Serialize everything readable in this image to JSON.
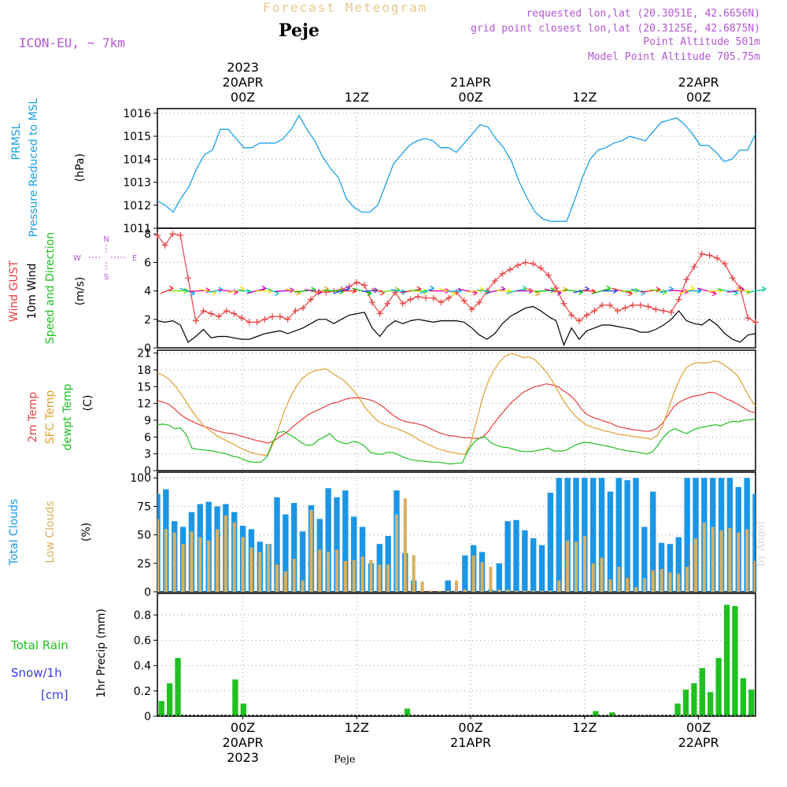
{
  "header": {
    "title": "Forecast Meteogram",
    "place": "Peje",
    "model": "ICON-EU, ~ 7km",
    "requested": "requested lon,lat (20.3051E, 42.6656N)",
    "grid_point": "grid point closest lon,lat (20.3125E, 42.6875N)",
    "point_altitude": "Point Altitude 501m",
    "model_altitude": "Model Point Altitude 705.75m",
    "credit": "by Angel"
  },
  "footer": {
    "place": "Peje"
  },
  "colors": {
    "pressure": "#1ca0e6",
    "gust": "#e84040",
    "wind": "#000000",
    "wind_dir": "#1fbf1f",
    "t2m": "#e84040",
    "tsfc": "#e0a030",
    "dewpt": "#20c020",
    "total_clouds": "#1a96e6",
    "low_clouds": "#d7b060",
    "rain": "#20c020",
    "snow": "#3a3ae0",
    "compass": "#b455d6",
    "grid": "#999999"
  },
  "chart_data": {
    "type": "meteogram",
    "time_axis": {
      "unit": "hours from 2023-04-19 15Z",
      "range": [
        0,
        63
      ],
      "major_ticks": [
        {
          "t": 9,
          "label": "00Z",
          "date": "20APR",
          "year": "2023"
        },
        {
          "t": 21,
          "label": "12Z",
          "date": "",
          "year": ""
        },
        {
          "t": 33,
          "label": "00Z",
          "date": "21APR",
          "year": ""
        },
        {
          "t": 45,
          "label": "12Z",
          "date": "",
          "year": ""
        },
        {
          "t": 57,
          "label": "00Z",
          "date": "22APR",
          "year": ""
        },
        {
          "t": 69,
          "label": "12Z",
          "date": "",
          "year": ""
        }
      ]
    },
    "panels": [
      {
        "id": "pressure",
        "labels": [
          "PRMSL",
          "Pressure Reduced to MSL"
        ],
        "unit": "(hPa)",
        "ylim": [
          1011,
          1016.2
        ],
        "yticks": [
          1011,
          1012,
          1013,
          1014,
          1015,
          1016
        ],
        "series": [
          {
            "key": "prmsl",
            "values": [
              1012.2,
              1012.0,
              1011.7,
              1012.3,
              1012.8,
              1013.6,
              1014.2,
              1014.4,
              1015.3,
              1015.3,
              1014.9,
              1014.5,
              1014.5,
              1014.7,
              1014.7,
              1014.7,
              1014.9,
              1015.3,
              1015.9,
              1015.3,
              1014.8,
              1014.1,
              1013.6,
              1013.2,
              1012.3,
              1011.9,
              1011.7,
              1011.7,
              1012.0,
              1012.9,
              1013.8,
              1014.2,
              1014.6,
              1014.8,
              1014.9,
              1014.8,
              1014.5,
              1014.5,
              1014.3,
              1014.7,
              1015.1,
              1015.5,
              1015.4,
              1014.9,
              1014.5,
              1013.9,
              1013.0,
              1012.3,
              1011.7,
              1011.4,
              1011.3,
              1011.3,
              1011.3,
              1012.2,
              1013.2,
              1014.0,
              1014.4,
              1014.5,
              1014.7,
              1014.8,
              1015.0,
              1014.9,
              1014.8,
              1015.2,
              1015.6,
              1015.7,
              1015.8,
              1015.5,
              1015.1,
              1014.6,
              1014.6,
              1014.3,
              1013.9,
              1014.0,
              1014.4,
              1014.4,
              1015.1
            ]
          }
        ]
      },
      {
        "id": "wind",
        "labels": [
          "Wind GUST",
          "10m Wind",
          "Speed and Direction"
        ],
        "unit": "(m/s)",
        "ylim": [
          0,
          8.4
        ],
        "yticks": [
          0,
          2,
          4,
          6,
          8
        ],
        "compass": {
          "n": "N",
          "s": "S",
          "e": "E",
          "w": "W"
        },
        "series": [
          {
            "key": "gust",
            "values": [
              7.9,
              7.2,
              8.0,
              7.9,
              4.9,
              1.9,
              2.6,
              2.4,
              2.2,
              2.6,
              2.4,
              2.1,
              1.8,
              1.8,
              2.0,
              2.2,
              2.2,
              2.0,
              2.6,
              2.8,
              3.4,
              3.9,
              3.9,
              4.0,
              4.1,
              4.3,
              4.6,
              4.4,
              3.2,
              2.4,
              3.1,
              3.9,
              3.1,
              3.4,
              3.6,
              3.5,
              3.5,
              3.2,
              3.5,
              3.9,
              3.3,
              2.7,
              3.2,
              4.0,
              4.7,
              5.2,
              5.5,
              5.8,
              6.0,
              5.9,
              5.6,
              5.1,
              4.2,
              3.1,
              2.3,
              1.9,
              2.3,
              2.6,
              3.0,
              3.0,
              2.6,
              2.8,
              3.0,
              3.0,
              2.9,
              2.7,
              2.6,
              2.5,
              3.4,
              4.8,
              5.7,
              6.6,
              6.5,
              6.3,
              5.9,
              4.9,
              4.2,
              2.1,
              1.8
            ]
          },
          {
            "key": "wind10m",
            "values": [
              1.9,
              1.8,
              1.9,
              1.6,
              0.4,
              0.8,
              1.3,
              0.7,
              0.8,
              0.8,
              0.7,
              0.6,
              0.6,
              0.8,
              1.0,
              1.1,
              1.2,
              1.0,
              1.2,
              1.4,
              1.7,
              2.0,
              2.0,
              1.7,
              2.0,
              2.3,
              2.4,
              2.5,
              1.4,
              0.8,
              1.5,
              1.9,
              1.7,
              1.9,
              2.0,
              1.9,
              1.8,
              1.9,
              1.9,
              1.9,
              1.8,
              1.4,
              0.9,
              0.6,
              1.0,
              1.7,
              2.2,
              2.5,
              2.8,
              2.9,
              2.6,
              2.2,
              1.9,
              0.2,
              1.4,
              0.6,
              1.2,
              1.4,
              1.6,
              1.6,
              1.5,
              1.4,
              1.3,
              1.1,
              1.1,
              1.3,
              1.6,
              2.0,
              2.6,
              1.9,
              1.7,
              1.6,
              2.0,
              1.6,
              1.0,
              0.6,
              0.4,
              0.9,
              1.0
            ]
          }
        ]
      },
      {
        "id": "temperature",
        "labels": [
          "2m Temp",
          "SFC Temp",
          "dewpt Temp"
        ],
        "unit": "(C)",
        "ylim": [
          0,
          21.5
        ],
        "yticks": [
          0,
          3,
          6,
          9,
          12,
          15,
          18,
          21
        ],
        "series": [
          {
            "key": "t2m",
            "values": [
              12.5,
              12.2,
              11.8,
              11.0,
              10.0,
              9.3,
              8.8,
              8.3,
              7.9,
              7.6,
              7.2,
              6.9,
              6.7,
              6.6,
              6.3,
              6.0,
              5.7,
              5.4,
              5.2,
              4.9,
              5.3,
              6.0,
              6.6,
              7.5,
              8.4,
              9.2,
              10.0,
              10.5,
              11.0,
              11.5,
              12.0,
              12.2,
              12.6,
              12.9,
              13.0,
              13.0,
              12.8,
              12.5,
              12.0,
              11.3,
              10.4,
              9.6,
              9.0,
              8.7,
              8.5,
              8.3,
              8.0,
              7.5,
              7.0,
              6.6,
              6.3,
              6.2,
              6.0,
              5.9,
              5.8,
              5.7,
              6.0,
              7.0,
              8.5,
              9.8,
              11.0,
              12.2,
              13.1,
              14.0,
              14.5,
              15.0,
              15.2,
              15.5,
              15.3,
              15.0,
              14.2,
              13.5,
              12.5,
              11.0,
              10.0,
              9.5,
              9.2,
              8.8,
              8.5,
              8.0,
              7.7,
              7.5,
              7.3,
              7.2,
              7.0,
              7.1,
              7.5,
              8.5,
              10.0,
              11.5,
              12.3,
              12.8,
              13.2,
              13.4,
              13.6,
              14.0,
              13.9,
              13.4,
              12.8,
              12.4,
              11.8,
              11.2,
              10.6,
              10.3
            ]
          },
          {
            "key": "tsfc",
            "values": [
              17.5,
              17.0,
              16.3,
              15.2,
              13.8,
              12.2,
              10.6,
              9.2,
              8.0,
              7.2,
              6.4,
              5.8,
              5.3,
              4.8,
              4.2,
              3.7,
              3.3,
              3.0,
              2.8,
              2.7,
              5.0,
              8.0,
              11.0,
              13.3,
              15.2,
              16.5,
              17.3,
              17.8,
              18.0,
              18.2,
              17.5,
              16.8,
              16.2,
              15.2,
              14.0,
              12.5,
              11.0,
              9.8,
              8.8,
              8.3,
              7.9,
              7.6,
              7.2,
              6.7,
              6.2,
              5.5,
              5.0,
              4.5,
              4.0,
              3.7,
              3.4,
              3.2,
              3.0,
              2.9,
              5.0,
              9.0,
              13.0,
              16.0,
              18.0,
              19.5,
              20.5,
              20.9,
              20.6,
              20.2,
              20.3,
              19.8,
              18.8,
              17.6,
              16.0,
              14.2,
              12.4,
              10.9,
              9.7,
              8.8,
              8.1,
              7.7,
              7.4,
              7.1,
              6.9,
              6.6,
              6.4,
              6.3,
              6.1,
              6.0,
              5.8,
              5.6,
              6.2,
              8.0,
              11.0,
              14.0,
              16.5,
              18.3,
              19.0,
              19.3,
              19.2,
              19.3,
              19.6,
              19.3,
              18.6,
              17.8,
              16.8,
              15.0,
              13.0,
              11.5
            ]
          },
          {
            "key": "dewpt",
            "values": [
              8.2,
              8.3,
              8.1,
              7.5,
              7.6,
              6.5,
              4.0,
              3.8,
              3.7,
              3.6,
              3.4,
              3.2,
              3.0,
              2.6,
              2.4,
              2.0,
              1.6,
              1.5,
              1.5,
              2.4,
              5.0,
              6.8,
              7.0,
              6.4,
              5.8,
              5.0,
              4.5,
              4.6,
              5.5,
              6.0,
              6.6,
              5.5,
              5.0,
              4.8,
              5.2,
              5.0,
              4.4,
              3.3,
              3.0,
              2.9,
              3.3,
              3.2,
              2.8,
              2.3,
              2.0,
              1.8,
              1.7,
              1.6,
              1.5,
              1.5,
              1.3,
              1.2,
              1.3,
              1.4,
              3.5,
              5.0,
              5.8,
              6.0,
              5.0,
              4.5,
              4.2,
              4.1,
              3.8,
              3.5,
              3.4,
              3.4,
              3.6,
              3.8,
              4.0,
              3.5,
              3.5,
              3.6,
              4.2,
              4.7,
              5.0,
              5.0,
              4.8,
              4.6,
              4.4,
              4.2,
              3.9,
              3.7,
              3.5,
              3.4,
              3.2,
              3.0,
              3.3,
              4.5,
              6.0,
              7.0,
              7.5,
              7.0,
              6.6,
              7.2,
              7.6,
              7.8,
              8.0,
              8.2,
              8.0,
              8.5,
              8.8,
              8.7,
              9.0,
              9.1,
              9.2
            ]
          }
        ]
      },
      {
        "id": "clouds",
        "labels": [
          "Total Clouds",
          "Low Clouds"
        ],
        "unit": "(%)",
        "ylim": [
          0,
          105
        ],
        "yticks": [
          0,
          25,
          50,
          75,
          100
        ],
        "series": [
          {
            "key": "total_clouds",
            "values": [
              86,
              90,
              62,
              57,
              70,
              77,
              79,
              75,
              77,
              70,
              58,
              55,
              44,
              42,
              83,
              68,
              78,
              53,
              76,
              64,
              91,
              83,
              89,
              66,
              57,
              25,
              42,
              49,
              89,
              34,
              10,
              0,
              0,
              0,
              10,
              1,
              32,
              41,
              35,
              2,
              25,
              62,
              63,
              54,
              47,
              41,
              87,
              100,
              100,
              100,
              100,
              100,
              100,
              88,
              100,
              98,
              100,
              57,
              88,
              43,
              42,
              48,
              100,
              100,
              100,
              100,
              100,
              100,
              92,
              100,
              86
            ]
          },
          {
            "key": "low_clouds",
            "values": [
              64,
              55,
              52,
              42,
              53,
              48,
              45,
              55,
              67,
              61,
              48,
              39,
              35,
              42,
              24,
              18,
              29,
              10,
              72,
              37,
              35,
              37,
              27,
              28,
              31,
              28,
              24,
              24,
              68,
              82,
              32,
              9,
              0,
              0,
              0,
              10,
              2,
              32,
              26,
              22,
              2,
              2,
              0,
              0,
              0,
              0,
              0,
              10,
              45,
              44,
              49,
              25,
              30,
              11,
              22,
              12,
              4,
              12,
              19,
              20,
              17,
              16,
              22,
              47,
              61,
              57,
              54,
              56,
              52,
              55,
              27
            ]
          }
        ]
      },
      {
        "id": "precip",
        "labels": [
          "Total Rain",
          "Snow/1h",
          "[cm]"
        ],
        "unit": "1hr Precip (mm)",
        "ylim": [
          0,
          0.97
        ],
        "yticks": [
          0,
          0.2,
          0.4,
          0.6,
          0.8
        ],
        "series": [
          {
            "key": "rain",
            "values": [
              0.12,
              0.26,
              0.46,
              0,
              0,
              0,
              0,
              0,
              0,
              0.29,
              0.1,
              0,
              0,
              0,
              0,
              0,
              0,
              0,
              0,
              0,
              0,
              0,
              0,
              0,
              0,
              0,
              0,
              0,
              0,
              0,
              0.06,
              0,
              0,
              0,
              0,
              0,
              0,
              0,
              0,
              0,
              0,
              0,
              0,
              0,
              0,
              0,
              0,
              0,
              0,
              0,
              0,
              0,
              0,
              0.04,
              0,
              0.03,
              0,
              0,
              0,
              0,
              0,
              0,
              0,
              0.1,
              0.21,
              0.26,
              0.38,
              0.19,
              0.46,
              0.88,
              0.87,
              0.3,
              0.21
            ]
          }
        ]
      }
    ]
  }
}
